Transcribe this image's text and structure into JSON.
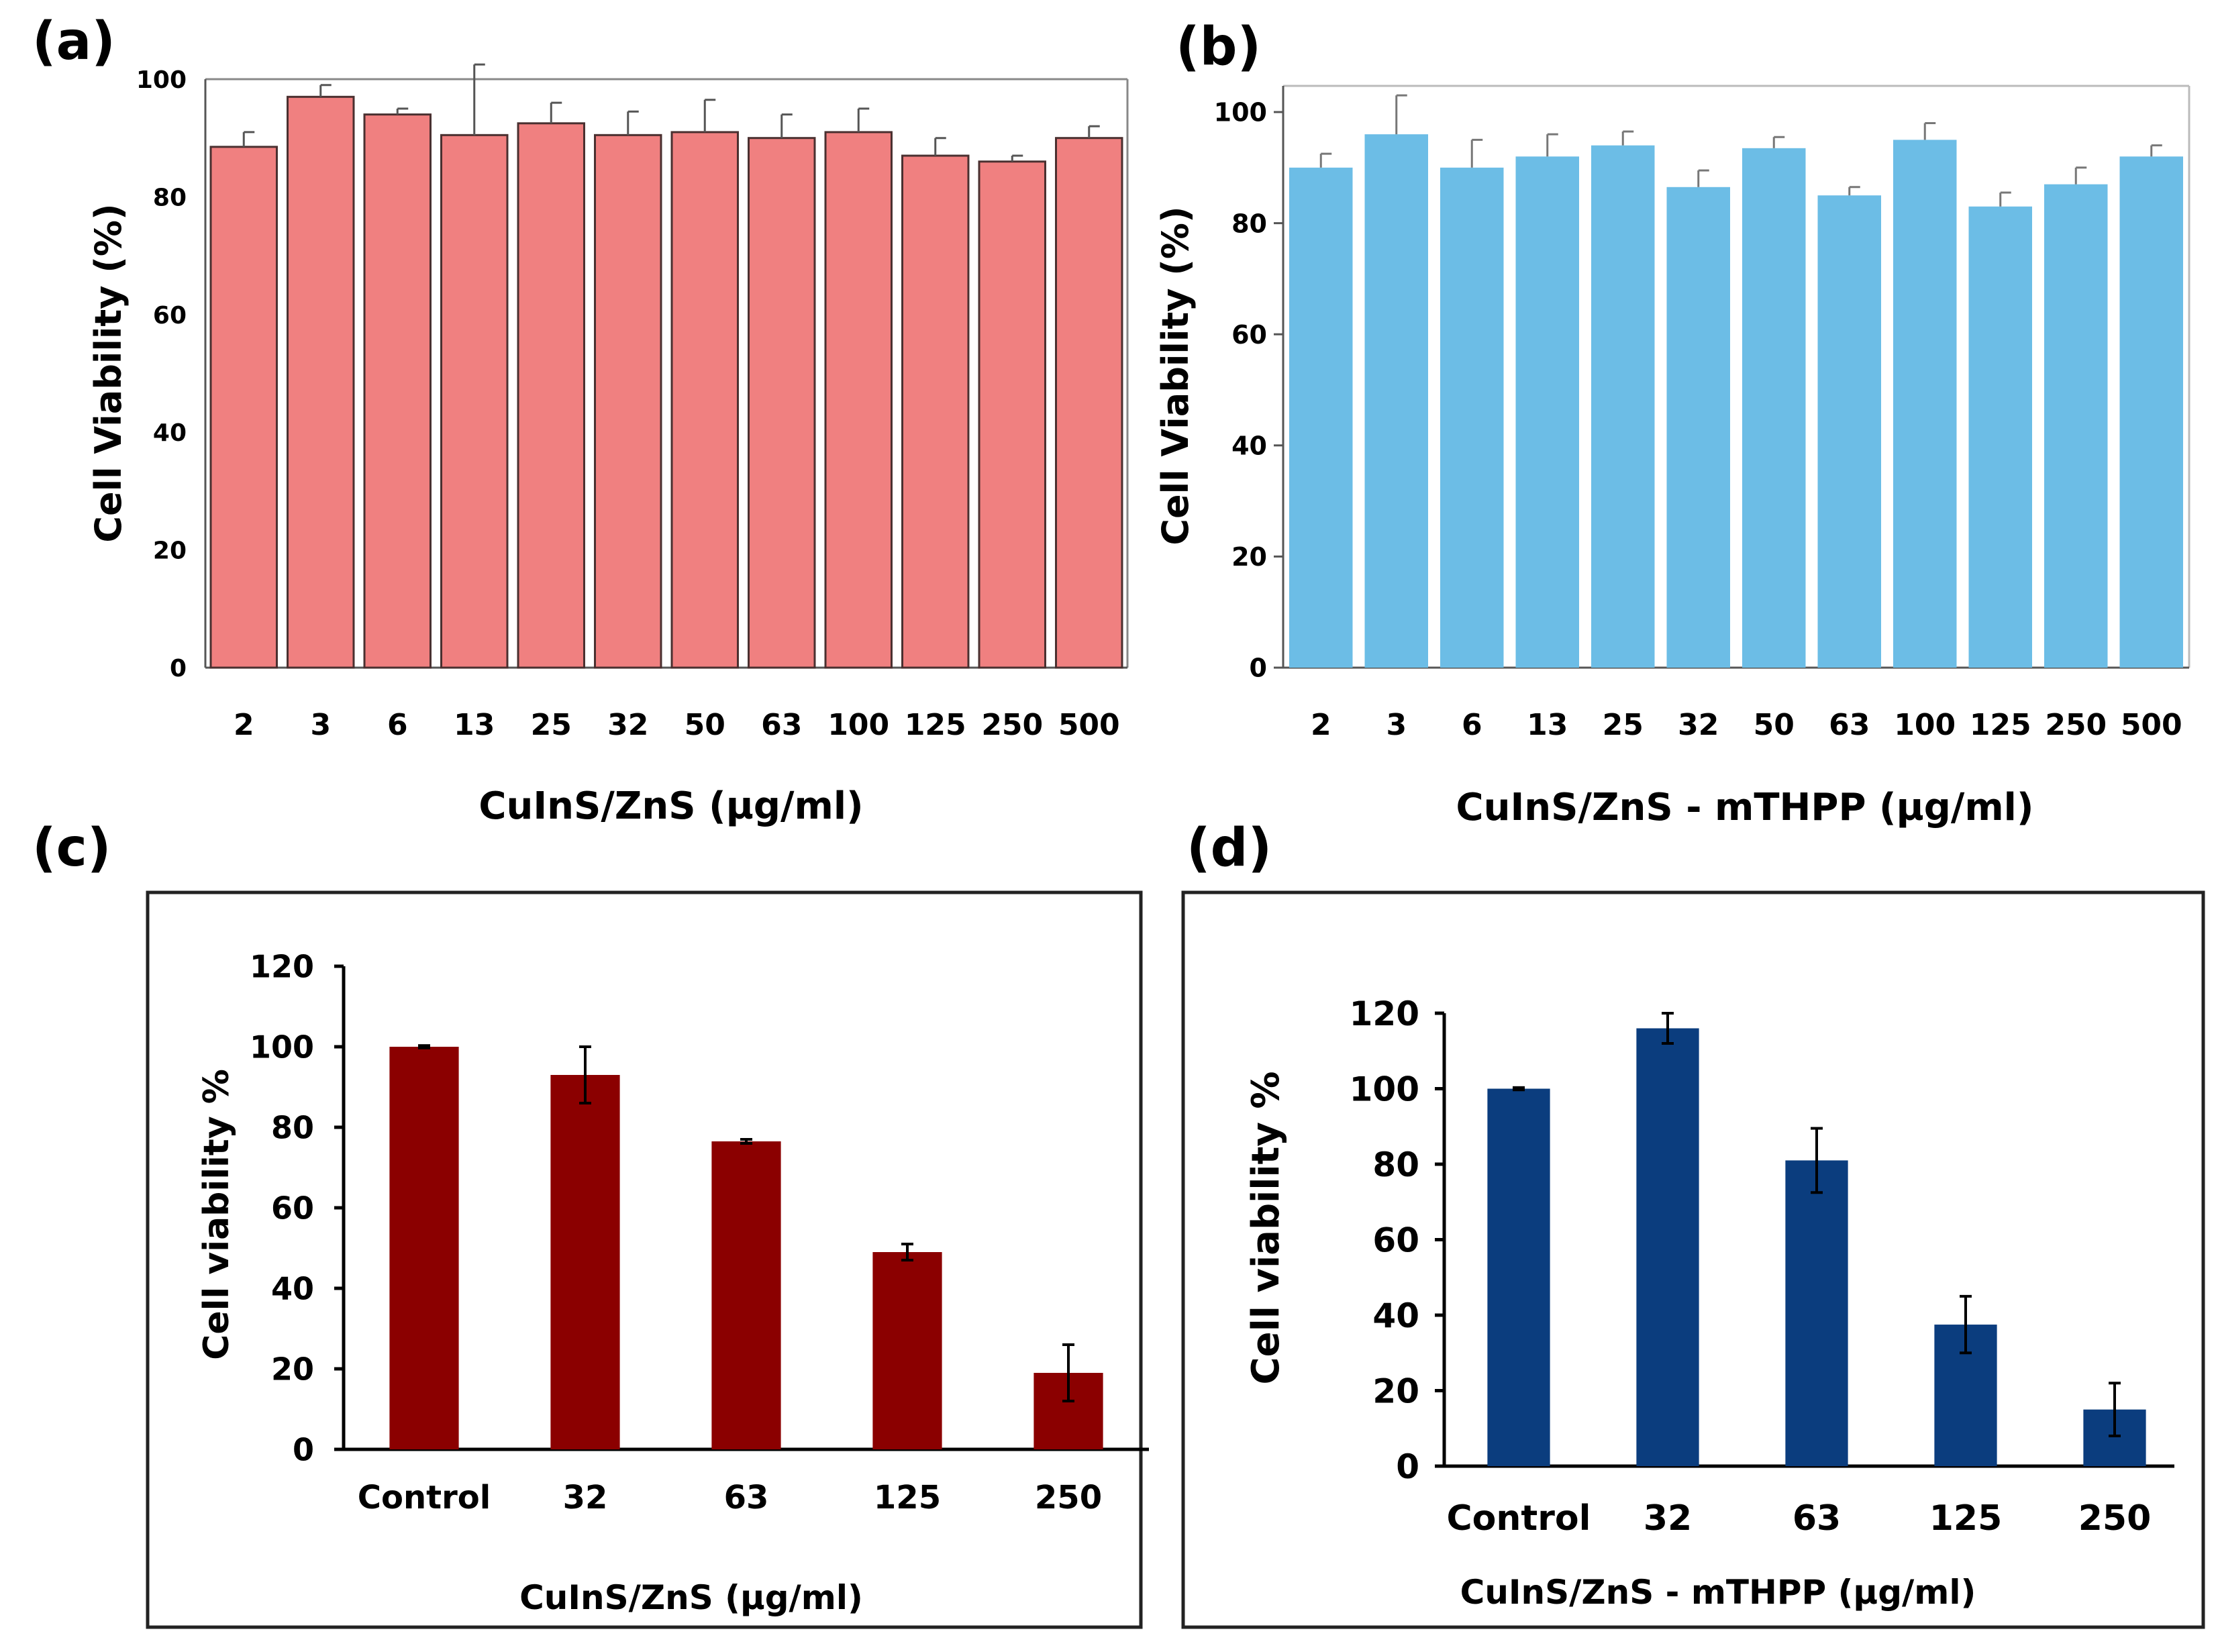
{
  "figure": {
    "background": "#ffffff"
  },
  "chart_data": [
    {
      "panel": "(a)",
      "type": "bar",
      "color": "#f08080",
      "border_color": "#4a3030",
      "categories": [
        "2",
        "3",
        "6",
        "13",
        "25",
        "32",
        "50",
        "63",
        "100",
        "125",
        "250",
        "500"
      ],
      "values": [
        88.5,
        97,
        94,
        90.5,
        92.5,
        90.5,
        91,
        90,
        91,
        87,
        86,
        90
      ],
      "errors": [
        2.5,
        2,
        1,
        12,
        3.5,
        4,
        5.5,
        4,
        4,
        3,
        1,
        2
      ],
      "xlabel": "CuInS/ZnS (µg/ml)",
      "ylabel": "Cell Viability (%)",
      "ylim": [
        0,
        100
      ],
      "yticks": [
        "0",
        "20",
        "40",
        "60",
        "80",
        "100"
      ],
      "grid": false
    },
    {
      "panel": "(b)",
      "type": "bar",
      "color": "#6cbde6",
      "border_color": "#6cbde6",
      "categories": [
        "2",
        "3",
        "6",
        "13",
        "25",
        "32",
        "50",
        "63",
        "100",
        "125",
        "250",
        "500"
      ],
      "values": [
        90,
        96,
        90,
        92,
        94,
        86.5,
        93.5,
        85,
        95,
        83,
        87,
        92
      ],
      "errors": [
        2.5,
        7,
        5,
        4,
        2.5,
        3,
        2,
        1.5,
        3,
        2.5,
        3,
        2
      ],
      "xlabel": "CuInS/ZnS - mTHPP (µg/ml)",
      "ylabel": "Cell Viability (%)",
      "ylim": [
        0,
        105
      ],
      "yticks": [
        "0",
        "20",
        "40",
        "60",
        "80",
        "100"
      ],
      "grid": false
    },
    {
      "panel": "(c)",
      "type": "bar",
      "color": "#8b0000",
      "border_color": "#8b0000",
      "categories": [
        "Control",
        "32",
        "63",
        "125",
        "250"
      ],
      "values": [
        100,
        93,
        76.5,
        49,
        19
      ],
      "errors": [
        0.3,
        7,
        0.5,
        2,
        7
      ],
      "xlabel": "CuInS/ZnS (µg/ml)",
      "ylabel": "Cell viability %",
      "ylim": [
        0,
        120
      ],
      "yticks": [
        "0",
        "20",
        "40",
        "60",
        "80",
        "100",
        "120"
      ],
      "grid": false
    },
    {
      "panel": "(d)",
      "type": "bar",
      "color": "#0b3d7e",
      "border_color": "#0b3d7e",
      "categories": [
        "Control",
        "32",
        "63",
        "125",
        "250"
      ],
      "values": [
        100,
        116,
        81,
        37.5,
        15
      ],
      "errors": [
        0.3,
        4,
        8.5,
        7.5,
        7
      ],
      "xlabel": "CuInS/ZnS - mTHPP (µg/ml)",
      "ylabel": "Cell viability %",
      "ylim": [
        0,
        120
      ],
      "yticks": [
        "0",
        "20",
        "40",
        "60",
        "80",
        "100",
        "120"
      ],
      "grid": false
    }
  ]
}
